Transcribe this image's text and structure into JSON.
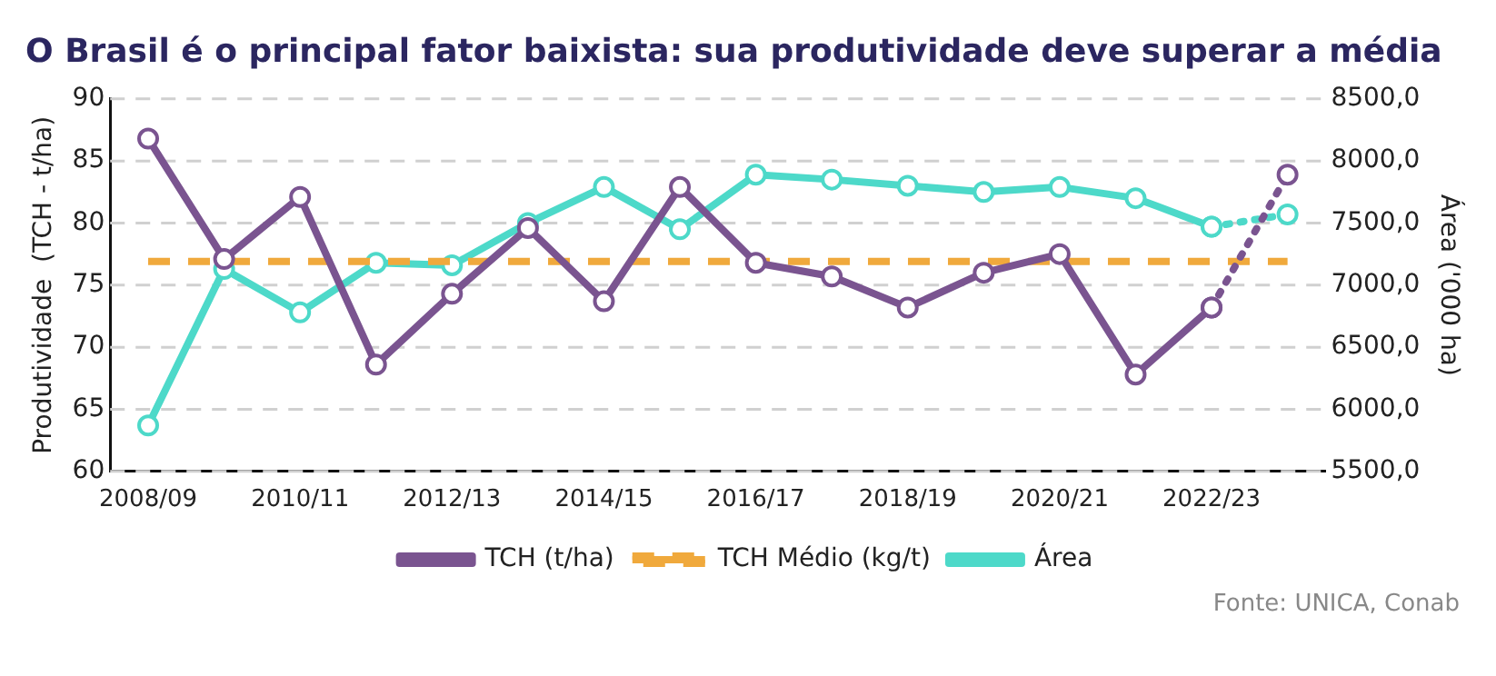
{
  "chart_data": {
    "type": "line",
    "title": "O Brasil é o principal fator baixista: sua produtividade deve superar a média",
    "categories": [
      "2008/09",
      null,
      "2010/11",
      null,
      "2012/13",
      null,
      "2014/15",
      null,
      "2016/17",
      null,
      "2018/19",
      null,
      "2020/21",
      null,
      "2022/23",
      null
    ],
    "series": [
      {
        "name": "TCH (t/ha)",
        "color": "#7a5490",
        "marker": "circle",
        "line_style": "solid",
        "values": [
          86.8,
          77.1,
          82.1,
          68.6,
          74.3,
          79.6,
          73.7,
          82.9,
          76.8,
          75.7,
          73.2,
          76.0,
          77.5,
          67.8,
          73.2,
          null
        ]
      },
      {
        "color": "#7a5490",
        "marker": "circle",
        "line_style": "dotted",
        "values": [
          null,
          null,
          null,
          null,
          null,
          null,
          null,
          null,
          null,
          null,
          null,
          null,
          null,
          null,
          73.2,
          83.9
        ]
      },
      {
        "name": "TCH Médio (kg/t)",
        "color": "#f0a93c",
        "marker": "none",
        "line_style": "dashed",
        "values": [
          76.9,
          76.9,
          76.9,
          76.9,
          76.9,
          76.9,
          76.9,
          76.9,
          76.9,
          76.9,
          76.9,
          76.9,
          76.9,
          76.9,
          76.9,
          76.9
        ]
      },
      {
        "name": "Área",
        "color": "#4dd9c9",
        "marker": "circle",
        "line_style": "solid",
        "axis": "y2",
        "values": [
          5870,
          7130,
          6780,
          7180,
          7160,
          7500,
          7790,
          7450,
          7890,
          7850,
          7800,
          7750,
          7790,
          7700,
          7470,
          null
        ]
      },
      {
        "color": "#4dd9c9",
        "marker": "circle",
        "line_style": "dotted",
        "axis": "y2",
        "values": [
          null,
          null,
          null,
          null,
          null,
          null,
          null,
          null,
          null,
          null,
          null,
          null,
          null,
          null,
          7470,
          7570
        ]
      }
    ],
    "ylabel": "Produtividade  (TCH - t/ha)",
    "y2label": "Área ('000 ha)",
    "ylim": [
      60,
      90
    ],
    "yticks": [
      60,
      65,
      70,
      75,
      80,
      85,
      90
    ],
    "y2lim": [
      5500,
      8500
    ],
    "y2ticks": [
      {
        "value": 5500,
        "label": "5500,0"
      },
      {
        "value": 6000,
        "label": "6000,0"
      },
      {
        "value": 6500,
        "label": "6500,0"
      },
      {
        "value": 7000,
        "label": "7000,0"
      },
      {
        "value": 7500,
        "label": "7500,0"
      },
      {
        "value": 8000,
        "label": "8000,0"
      },
      {
        "value": 8500,
        "label": "8500,0"
      }
    ],
    "grid": "y",
    "legend": "bottom",
    "annotations": [
      "Fonte: UNICA, Conab"
    ]
  }
}
